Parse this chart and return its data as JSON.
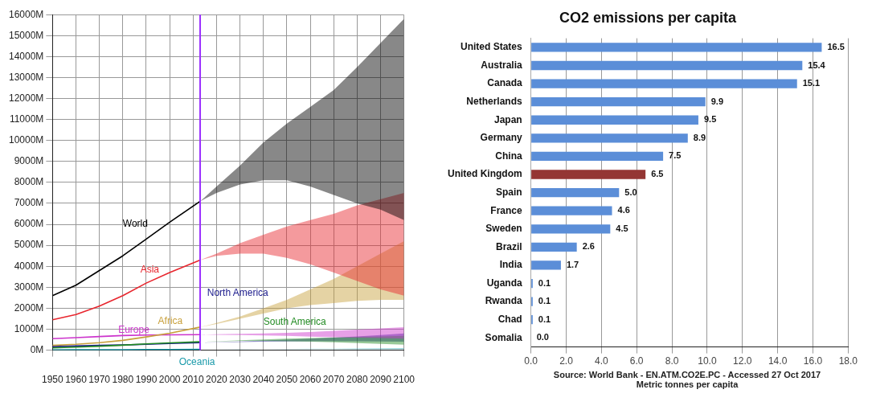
{
  "chart_data": [
    {
      "type": "line",
      "x": [
        1950,
        1960,
        1970,
        1980,
        1990,
        2000,
        2013,
        2020,
        2030,
        2040,
        2050,
        2060,
        2070,
        2080,
        2090,
        2100
      ],
      "xlim": [
        1950,
        2100
      ],
      "xticks": [
        1950,
        1960,
        1970,
        1980,
        1990,
        2000,
        2010,
        2020,
        2030,
        2040,
        2050,
        2060,
        2070,
        2080,
        2090,
        2100
      ],
      "ylim": [
        0,
        16000
      ],
      "yticks": [
        {
          "value": 0,
          "label": "0M"
        },
        {
          "value": 1000,
          "label": "1000M"
        },
        {
          "value": 2000,
          "label": "2000M"
        },
        {
          "value": 3000,
          "label": "3000M"
        },
        {
          "value": 4000,
          "label": "4000M"
        },
        {
          "value": 5000,
          "label": "5000M"
        },
        {
          "value": 6000,
          "label": "6000M"
        },
        {
          "value": 7000,
          "label": "7000M"
        },
        {
          "value": 8000,
          "label": "8000M"
        },
        {
          "value": 9000,
          "label": "9000M"
        },
        {
          "value": 10000,
          "label": "10000M"
        },
        {
          "value": 11000,
          "label": "11000M"
        },
        {
          "value": 12000,
          "label": "12000M"
        },
        {
          "value": 13000,
          "label": "13000M"
        },
        {
          "value": 14000,
          "label": "14000M"
        },
        {
          "value": 15000,
          "label": "15000M"
        },
        {
          "value": 16000,
          "label": "16000M"
        }
      ],
      "grid": true,
      "ref_lines": [
        {
          "axis": "x",
          "value": 2013,
          "color": "#9b30ff"
        }
      ],
      "series": [
        {
          "name": "World",
          "color": "#000000",
          "values": [
            2600,
            3100,
            3800,
            4500,
            5300,
            6100,
            7100,
            null,
            null,
            null,
            null,
            null,
            null,
            null,
            null,
            null
          ],
          "upper": [
            null,
            null,
            null,
            null,
            null,
            null,
            7100,
            7800,
            8800,
            9900,
            10800,
            11600,
            12400,
            13500,
            14650,
            15800
          ],
          "lower": [
            null,
            null,
            null,
            null,
            null,
            null,
            7100,
            7500,
            7900,
            8100,
            8100,
            7800,
            7400,
            7000,
            6700,
            6200
          ]
        },
        {
          "name": "Asia",
          "color": "#e8262e",
          "values": [
            1450,
            1700,
            2100,
            2600,
            3200,
            3700,
            4300,
            null,
            null,
            null,
            null,
            null,
            null,
            null,
            null,
            null
          ],
          "upper": [
            null,
            null,
            null,
            null,
            null,
            null,
            4300,
            4600,
            5100,
            5500,
            5900,
            6200,
            6500,
            6900,
            7200,
            7500
          ],
          "lower": [
            null,
            null,
            null,
            null,
            null,
            null,
            4300,
            4500,
            4600,
            4600,
            4400,
            4100,
            3700,
            3300,
            2900,
            2600
          ]
        },
        {
          "name": "Africa",
          "color": "#c8a03c",
          "values": [
            230,
            280,
            360,
            470,
            630,
            810,
            1100,
            null,
            null,
            null,
            null,
            null,
            null,
            null,
            null,
            null
          ],
          "upper": [
            null,
            null,
            null,
            null,
            null,
            null,
            1100,
            1300,
            1600,
            2000,
            2400,
            2900,
            3400,
            4000,
            4600,
            5200
          ],
          "lower": [
            null,
            null,
            null,
            null,
            null,
            null,
            1100,
            1250,
            1500,
            1750,
            2000,
            2150,
            2250,
            2350,
            2400,
            2400
          ]
        },
        {
          "name": "Europe",
          "color": "#cc33cc",
          "values": [
            550,
            600,
            650,
            700,
            720,
            730,
            740,
            null,
            null,
            null,
            null,
            null,
            null,
            null,
            null,
            null
          ],
          "upper": [
            null,
            null,
            null,
            null,
            null,
            null,
            740,
            760,
            780,
            800,
            830,
            870,
            920,
            980,
            1040,
            1100
          ],
          "lower": [
            null,
            null,
            null,
            null,
            null,
            null,
            740,
            730,
            720,
            700,
            680,
            650,
            620,
            600,
            580,
            550
          ]
        },
        {
          "name": "South America",
          "color": "#228b22",
          "values": [
            110,
            150,
            190,
            240,
            300,
            350,
            400,
            null,
            null,
            null,
            null,
            null,
            null,
            null,
            null,
            null
          ],
          "upper": [
            null,
            null,
            null,
            null,
            null,
            null,
            400,
            430,
            470,
            510,
            550,
            580,
            610,
            640,
            660,
            680
          ],
          "lower": [
            null,
            null,
            null,
            null,
            null,
            null,
            400,
            420,
            440,
            440,
            430,
            410,
            380,
            340,
            300,
            260
          ]
        },
        {
          "name": "North America",
          "color": "#1a1a8c",
          "values": [
            170,
            200,
            230,
            250,
            280,
            320,
            360,
            null,
            null,
            null,
            null,
            null,
            null,
            null,
            null,
            null
          ],
          "upper": [
            null,
            null,
            null,
            null,
            null,
            null,
            360,
            380,
            420,
            460,
            500,
            550,
            600,
            660,
            720,
            800
          ],
          "lower": [
            null,
            null,
            null,
            null,
            null,
            null,
            360,
            370,
            390,
            410,
            420,
            430,
            430,
            430,
            420,
            410
          ]
        },
        {
          "name": "Oceania",
          "color": "#1a9aaa",
          "values": [
            10,
            20,
            20,
            20,
            30,
            30,
            40,
            null,
            null,
            null,
            null,
            null,
            null,
            null,
            null,
            null
          ],
          "upper": [
            null,
            null,
            null,
            null,
            null,
            null,
            40,
            40,
            50,
            50,
            60,
            70,
            70,
            80,
            90,
            100
          ],
          "lower": [
            null,
            null,
            null,
            null,
            null,
            null,
            40,
            40,
            40,
            50,
            50,
            50,
            50,
            40,
            40,
            40
          ]
        }
      ]
    },
    {
      "type": "bar",
      "orientation": "horizontal",
      "title": "CO2 emissions per capita",
      "xlabel": "Metric tonnes per capita",
      "annotations": [
        "Source: World Bank - EN.ATM.CO2E.PC - Accessed 27 Oct 2017"
      ],
      "categories": [
        "United States",
        "Australia",
        "Canada",
        "Netherlands",
        "Japan",
        "Germany",
        "China",
        "United Kingdom",
        "Spain",
        "France",
        "Sweden",
        "Brazil",
        "India",
        "Uganda",
        "Rwanda",
        "Chad",
        "Somalia"
      ],
      "values": [
        16.5,
        15.4,
        15.1,
        9.9,
        9.5,
        8.9,
        7.5,
        6.5,
        5.0,
        4.6,
        4.5,
        2.6,
        1.7,
        0.1,
        0.1,
        0.1,
        0.0
      ],
      "value_labels": [
        "16.5",
        "15.4",
        "15.1",
        "9.9",
        "9.5",
        "8.9",
        "7.5",
        "6.5",
        "5.0",
        "4.6",
        "4.5",
        "2.6",
        "1.7",
        "0.1",
        "0.1",
        "0.1",
        "0.0"
      ],
      "colors": [
        "#5b8ed8",
        "#5b8ed8",
        "#5b8ed8",
        "#5b8ed8",
        "#5b8ed8",
        "#5b8ed8",
        "#5b8ed8",
        "#943634",
        "#5b8ed8",
        "#5b8ed8",
        "#5b8ed8",
        "#5b8ed8",
        "#5b8ed8",
        "#5b8ed8",
        "#5b8ed8",
        "#5b8ed8",
        "#5b8ed8"
      ],
      "xlim": [
        0,
        18
      ],
      "xticks": [
        {
          "value": 0,
          "label": "0.0"
        },
        {
          "value": 2,
          "label": "2.0"
        },
        {
          "value": 4,
          "label": "4.0"
        },
        {
          "value": 6,
          "label": "6.0"
        },
        {
          "value": 8,
          "label": "8.0"
        },
        {
          "value": 10,
          "label": "10.0"
        },
        {
          "value": 12,
          "label": "12.0"
        },
        {
          "value": 14,
          "label": "14.0"
        },
        {
          "value": 16,
          "label": "16.0"
        },
        {
          "value": 18,
          "label": "18.0"
        }
      ],
      "grid": "x"
    }
  ]
}
